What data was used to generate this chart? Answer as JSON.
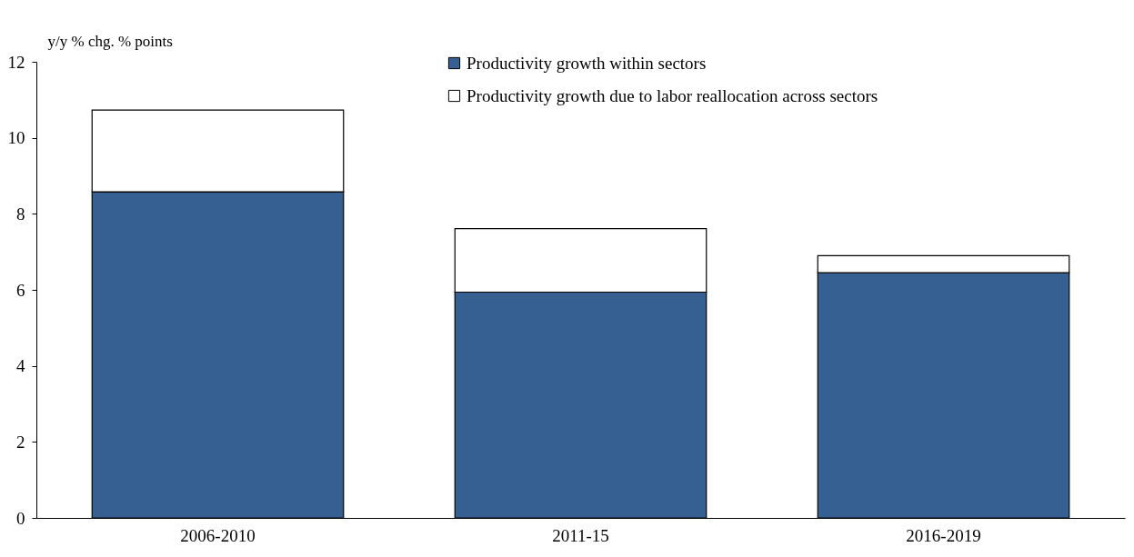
{
  "chart_data": {
    "type": "bar",
    "stacked": true,
    "ylabel": "y/y % chg. % points",
    "categories": [
      "2006-2010",
      "2011-15",
      "2016-2019"
    ],
    "series": [
      {
        "name": "Productivity growth within sectors",
        "color": "#376092",
        "values": [
          8.58,
          5.94,
          6.45
        ]
      },
      {
        "name": "Productivity growth due to labor reallocation across sectors",
        "color": "#ffffff",
        "values": [
          2.15,
          1.67,
          0.45
        ]
      }
    ],
    "ylim": [
      0,
      12
    ],
    "yticks": [
      0,
      2,
      4,
      6,
      8,
      10,
      12
    ],
    "grid": false,
    "legend": "top right"
  }
}
